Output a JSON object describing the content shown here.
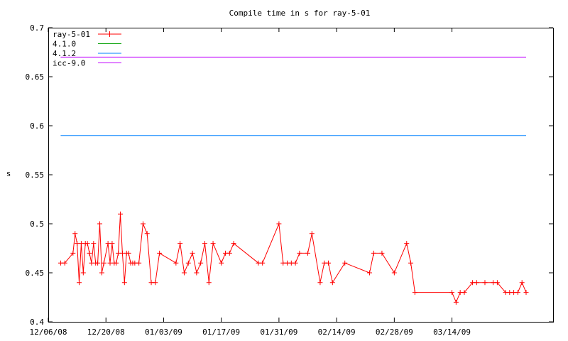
{
  "chart_data": {
    "type": "line",
    "title": "Compile time in s for ray-5-01",
    "xlabel": "",
    "ylabel": "s",
    "ylim": [
      0.4,
      0.7
    ],
    "xlim": [
      "2008-12-06",
      "2009-04-01"
    ],
    "y_ticks": [
      "0.4",
      "0.45",
      "0.5",
      "0.55",
      "0.6",
      "0.65",
      "0.7"
    ],
    "x_ticks": [
      {
        "date": "2008-12-06",
        "label": "12/06/08"
      },
      {
        "date": "2008-12-20",
        "label": "12/20/08"
      },
      {
        "date": "2009-01-03",
        "label": "01/03/09"
      },
      {
        "date": "2009-01-17",
        "label": "01/17/09"
      },
      {
        "date": "2009-01-31",
        "label": "01/31/09"
      },
      {
        "date": "2009-02-14",
        "label": "02/14/09"
      },
      {
        "date": "2009-02-28",
        "label": "02/28/09"
      },
      {
        "date": "2009-03-14",
        "label": "03/14/09"
      }
    ],
    "grid": false,
    "legend_position": "top-left",
    "series": [
      {
        "name": "ray-5-01",
        "color": "#ff0000",
        "marker": "plus",
        "points": [
          [
            "2008-12-09",
            0.46
          ],
          [
            "2008-12-10",
            0.46
          ],
          [
            "2008-12-12",
            0.47
          ],
          [
            "2008-12-12.5",
            0.49
          ],
          [
            "2008-12-13",
            0.48
          ],
          [
            "2008-12-13.5",
            0.44
          ],
          [
            "2008-12-14",
            0.48
          ],
          [
            "2008-12-14.5",
            0.45
          ],
          [
            "2008-12-15",
            0.48
          ],
          [
            "2008-12-15.5",
            0.48
          ],
          [
            "2008-12-16",
            0.47
          ],
          [
            "2008-12-16.5",
            0.46
          ],
          [
            "2008-12-17",
            0.48
          ],
          [
            "2008-12-17.5",
            0.46
          ],
          [
            "2008-12-18",
            0.46
          ],
          [
            "2008-12-18.5",
            0.5
          ],
          [
            "2008-12-19",
            0.45
          ],
          [
            "2008-12-19.5",
            0.46
          ],
          [
            "2008-12-20.5",
            0.48
          ],
          [
            "2008-12-21",
            0.46
          ],
          [
            "2008-12-21.5",
            0.48
          ],
          [
            "2008-12-22",
            0.46
          ],
          [
            "2008-12-22.5",
            0.46
          ],
          [
            "2008-12-23",
            0.47
          ],
          [
            "2008-12-23.5",
            0.51
          ],
          [
            "2008-12-24",
            0.47
          ],
          [
            "2008-12-24.5",
            0.44
          ],
          [
            "2008-12-25",
            0.47
          ],
          [
            "2008-12-25.5",
            0.47
          ],
          [
            "2008-12-26",
            0.46
          ],
          [
            "2008-12-26.5",
            0.46
          ],
          [
            "2008-12-27",
            0.46
          ],
          [
            "2008-12-28",
            0.46
          ],
          [
            "2008-12-29",
            0.5
          ],
          [
            "2008-12-30",
            0.49
          ],
          [
            "2008-12-31",
            0.44
          ],
          [
            "2009-01-01",
            0.44
          ],
          [
            "2009-01-02",
            0.47
          ],
          [
            "2009-01-06",
            0.46
          ],
          [
            "2009-01-07",
            0.48
          ],
          [
            "2009-01-08",
            0.45
          ],
          [
            "2009-01-09",
            0.46
          ],
          [
            "2009-01-10",
            0.47
          ],
          [
            "2009-01-11",
            0.45
          ],
          [
            "2009-01-12",
            0.46
          ],
          [
            "2009-01-13",
            0.48
          ],
          [
            "2009-01-14",
            0.44
          ],
          [
            "2009-01-15",
            0.48
          ],
          [
            "2009-01-17",
            0.46
          ],
          [
            "2009-01-18",
            0.47
          ],
          [
            "2009-01-19",
            0.47
          ],
          [
            "2009-01-20",
            0.48
          ],
          [
            "2009-01-26",
            0.46
          ],
          [
            "2009-01-27",
            0.46
          ],
          [
            "2009-01-31",
            0.5
          ],
          [
            "2009-02-01",
            0.46
          ],
          [
            "2009-02-02",
            0.46
          ],
          [
            "2009-02-03",
            0.46
          ],
          [
            "2009-02-04",
            0.46
          ],
          [
            "2009-02-05",
            0.47
          ],
          [
            "2009-02-07",
            0.47
          ],
          [
            "2009-02-08",
            0.49
          ],
          [
            "2009-02-10",
            0.44
          ],
          [
            "2009-02-11",
            0.46
          ],
          [
            "2009-02-12",
            0.46
          ],
          [
            "2009-02-13",
            0.44
          ],
          [
            "2009-02-16",
            0.46
          ],
          [
            "2009-02-22",
            0.45
          ],
          [
            "2009-02-23",
            0.47
          ],
          [
            "2009-02-25",
            0.47
          ],
          [
            "2009-02-28",
            0.45
          ],
          [
            "2009-03-03",
            0.48
          ],
          [
            "2009-03-04",
            0.46
          ],
          [
            "2009-03-05",
            0.43
          ],
          [
            "2009-03-14",
            0.43
          ],
          [
            "2009-03-15",
            0.42
          ],
          [
            "2009-03-16",
            0.43
          ],
          [
            "2009-03-17",
            0.43
          ],
          [
            "2009-03-19",
            0.44
          ],
          [
            "2009-03-20",
            0.44
          ],
          [
            "2009-03-22",
            0.44
          ],
          [
            "2009-03-24",
            0.44
          ],
          [
            "2009-03-25",
            0.44
          ],
          [
            "2009-03-27",
            0.43
          ],
          [
            "2009-03-28",
            0.43
          ],
          [
            "2009-03-29",
            0.43
          ],
          [
            "2009-03-30",
            0.43
          ],
          [
            "2009-03-31",
            0.44
          ],
          [
            "2009-04-01",
            0.43
          ]
        ]
      },
      {
        "name": "4.1.0",
        "color": "#00a000",
        "constant": null
      },
      {
        "name": "4.1.2",
        "color": "#0080ff",
        "constant": 0.59,
        "x_range": [
          "2008-12-09",
          "2009-04-01"
        ]
      },
      {
        "name": "icc-9.0",
        "color": "#c000ff",
        "constant": 0.67,
        "x_range": [
          "2008-12-09",
          "2009-04-01"
        ]
      }
    ]
  }
}
